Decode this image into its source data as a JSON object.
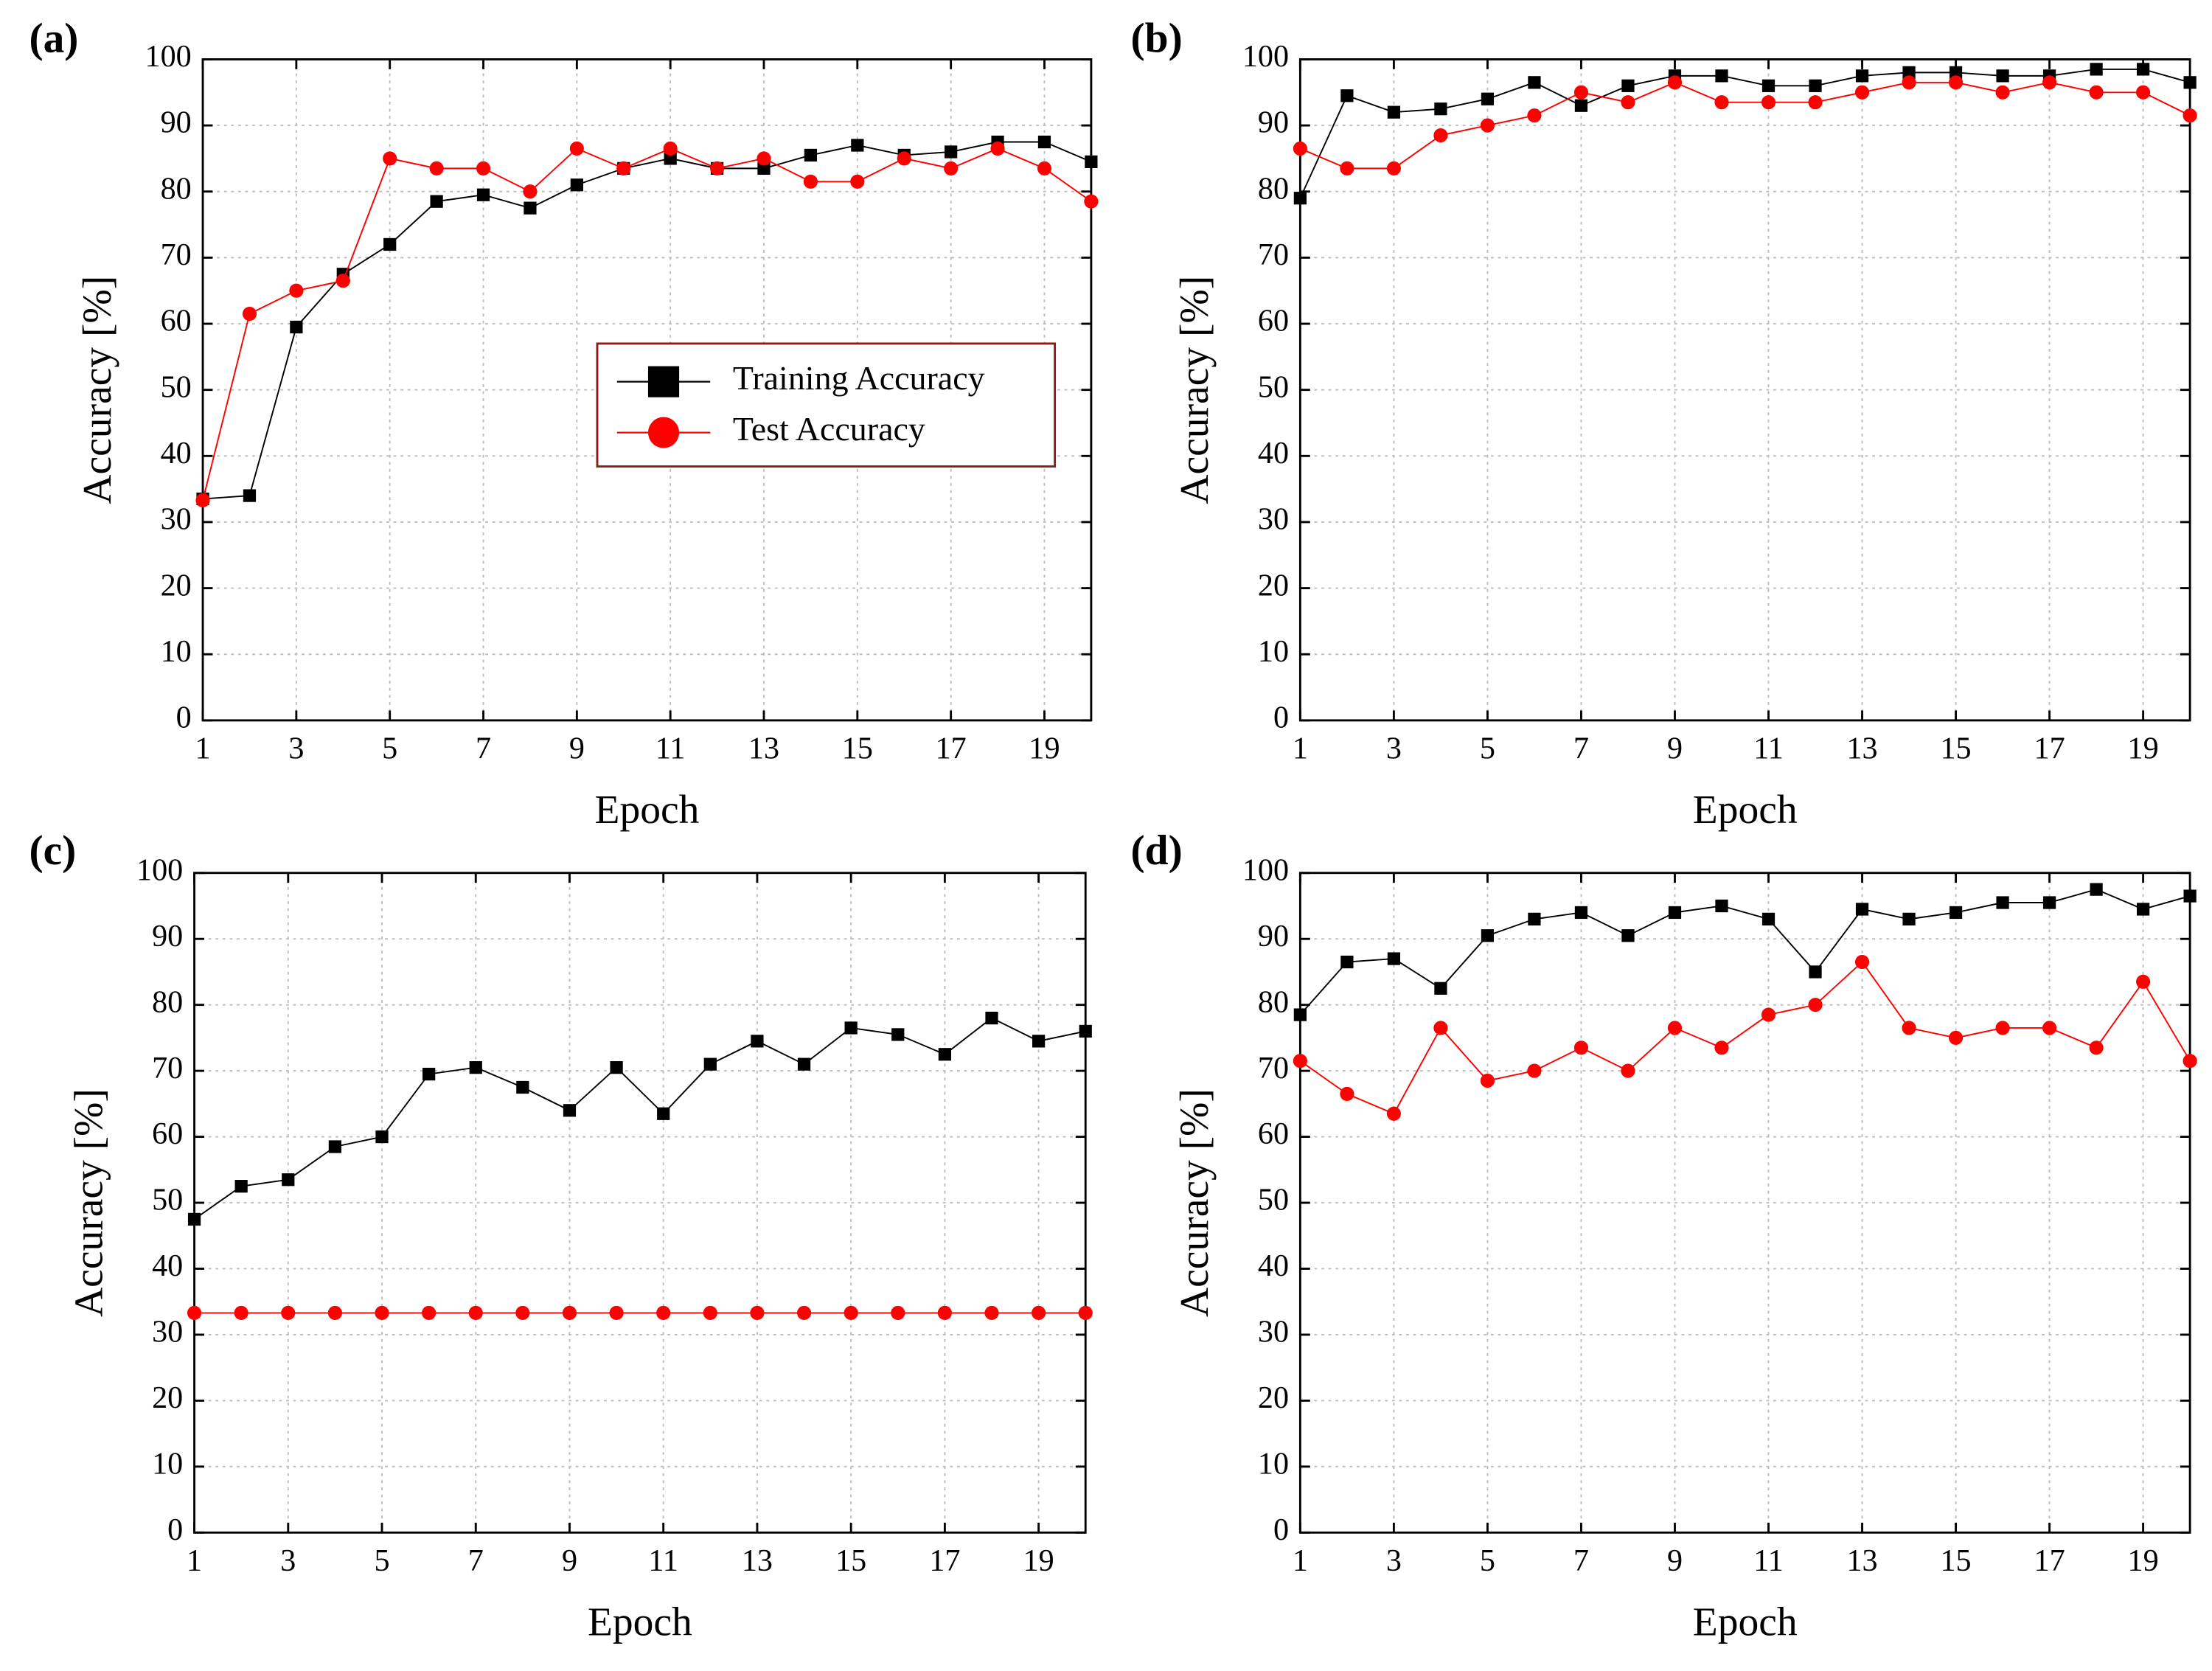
{
  "chart_data": [
    {
      "type": "line",
      "title": "(a)",
      "xlabel": "Epoch",
      "ylabel": "Accuracy [%]",
      "grid": true,
      "legend": "center-right",
      "x": [
        1,
        2,
        3,
        4,
        5,
        6,
        7,
        8,
        9,
        10,
        11,
        12,
        13,
        14,
        15,
        16,
        17,
        18,
        19,
        20
      ],
      "xlim": [
        1,
        20
      ],
      "xticks": [
        1,
        3,
        5,
        7,
        9,
        11,
        13,
        15,
        17,
        19
      ],
      "ylim": [
        0,
        100
      ],
      "yticks": [
        0,
        10,
        20,
        30,
        40,
        50,
        60,
        70,
        80,
        90,
        100
      ],
      "series": [
        {
          "name": "Training Accuracy",
          "color": "#000000",
          "marker": "square",
          "values": [
            33.5,
            34,
            59.5,
            67.5,
            72,
            78.5,
            79.5,
            77.5,
            81,
            83.5,
            85,
            83.5,
            83.5,
            85.5,
            87,
            85.5,
            86,
            87.5,
            87.5,
            84.5
          ]
        },
        {
          "name": "Test Accuracy",
          "color": "#ff0000",
          "marker": "circle",
          "values": [
            33.3,
            61.5,
            65,
            66.5,
            85,
            83.5,
            83.5,
            80,
            86.5,
            83.5,
            86.5,
            83.5,
            85,
            81.5,
            81.5,
            85,
            83.5,
            86.5,
            83.5,
            78.5
          ]
        }
      ]
    },
    {
      "type": "line",
      "title": "(b)",
      "xlabel": "Epoch",
      "ylabel": "Accuracy [%]",
      "grid": true,
      "x": [
        1,
        2,
        3,
        4,
        5,
        6,
        7,
        8,
        9,
        10,
        11,
        12,
        13,
        14,
        15,
        16,
        17,
        18,
        19,
        20
      ],
      "xlim": [
        1,
        20
      ],
      "xticks": [
        1,
        3,
        5,
        7,
        9,
        11,
        13,
        15,
        17,
        19
      ],
      "ylim": [
        0,
        100
      ],
      "yticks": [
        0,
        10,
        20,
        30,
        40,
        50,
        60,
        70,
        80,
        90,
        100
      ],
      "series": [
        {
          "name": "Training Accuracy",
          "color": "#000000",
          "marker": "square",
          "values": [
            79,
            94.5,
            92,
            92.5,
            94,
            96.5,
            93,
            96,
            97.5,
            97.5,
            96,
            96,
            97.5,
            98,
            98,
            97.5,
            97.5,
            98.5,
            98.5,
            96.5
          ]
        },
        {
          "name": "Test Accuracy",
          "color": "#ff0000",
          "marker": "circle",
          "values": [
            86.5,
            83.5,
            83.5,
            88.5,
            90,
            91.5,
            95,
            93.5,
            96.5,
            93.5,
            93.5,
            93.5,
            95,
            96.5,
            96.5,
            95,
            96.5,
            95,
            95,
            91.5
          ]
        }
      ]
    },
    {
      "type": "line",
      "title": "(c)",
      "xlabel": "Epoch",
      "ylabel": "Accuracy [%]",
      "grid": true,
      "x": [
        1,
        2,
        3,
        4,
        5,
        6,
        7,
        8,
        9,
        10,
        11,
        12,
        13,
        14,
        15,
        16,
        17,
        18,
        19,
        20
      ],
      "xlim": [
        1,
        20
      ],
      "xticks": [
        1,
        3,
        5,
        7,
        9,
        11,
        13,
        15,
        17,
        19
      ],
      "ylim": [
        0,
        100
      ],
      "yticks": [
        0,
        10,
        20,
        30,
        40,
        50,
        60,
        70,
        80,
        90,
        100
      ],
      "series": [
        {
          "name": "Training Accuracy",
          "color": "#000000",
          "marker": "square",
          "values": [
            47.5,
            52.5,
            53.5,
            58.5,
            60,
            69.5,
            70.5,
            67.5,
            64,
            70.5,
            63.5,
            71,
            74.5,
            71,
            76.5,
            75.5,
            72.5,
            78,
            74.5,
            76
          ]
        },
        {
          "name": "Test Accuracy",
          "color": "#ff0000",
          "marker": "circle",
          "values": [
            33.3,
            33.3,
            33.3,
            33.3,
            33.3,
            33.3,
            33.3,
            33.3,
            33.3,
            33.3,
            33.3,
            33.3,
            33.3,
            33.3,
            33.3,
            33.3,
            33.3,
            33.3,
            33.3,
            33.3
          ]
        }
      ]
    },
    {
      "type": "line",
      "title": "(d)",
      "xlabel": "Epoch",
      "ylabel": "Accuracy [%]",
      "grid": true,
      "x": [
        1,
        2,
        3,
        4,
        5,
        6,
        7,
        8,
        9,
        10,
        11,
        12,
        13,
        14,
        15,
        16,
        17,
        18,
        19,
        20
      ],
      "xlim": [
        1,
        20
      ],
      "xticks": [
        1,
        3,
        5,
        7,
        9,
        11,
        13,
        15,
        17,
        19
      ],
      "ylim": [
        0,
        100
      ],
      "yticks": [
        0,
        10,
        20,
        30,
        40,
        50,
        60,
        70,
        80,
        90,
        100
      ],
      "series": [
        {
          "name": "Training Accuracy",
          "color": "#000000",
          "marker": "square",
          "values": [
            78.5,
            86.5,
            87,
            82.5,
            90.5,
            93,
            94,
            90.5,
            94,
            95,
            93,
            85,
            94.5,
            93,
            94,
            95.5,
            95.5,
            97.5,
            94.5,
            96.5
          ]
        },
        {
          "name": "Test Accuracy",
          "color": "#ff0000",
          "marker": "circle",
          "values": [
            71.5,
            66.5,
            63.5,
            76.5,
            68.5,
            70,
            73.5,
            70,
            76.5,
            73.5,
            78.5,
            80,
            86.5,
            76.5,
            75,
            76.5,
            76.5,
            73.5,
            83.5,
            71.5
          ]
        }
      ]
    }
  ]
}
